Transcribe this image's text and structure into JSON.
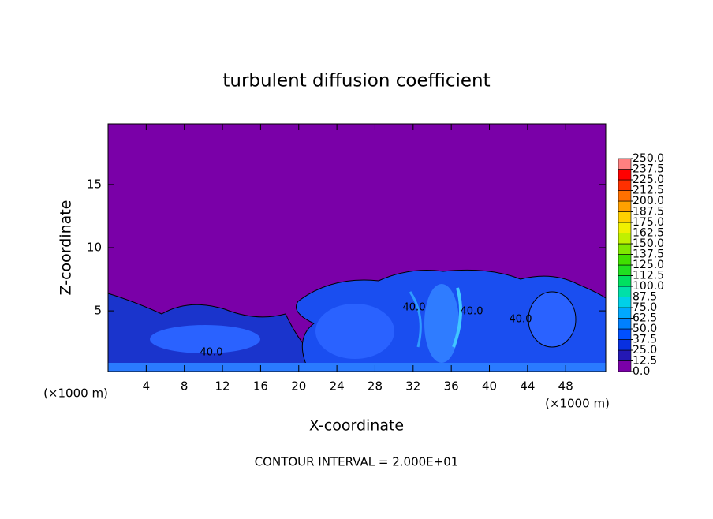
{
  "chart_data": {
    "type": "contour",
    "title": "turbulent diffusion coefficient",
    "x_label": "X-coordinate",
    "y_label": "Z-coordinate",
    "x_unit": "(×1000 m)",
    "footnote": "CONTOUR INTERVAL = 2.000E+01",
    "xlim": [
      0,
      52.2
    ],
    "ylim": [
      0.2,
      19.8
    ],
    "xticks": [
      4,
      8,
      12,
      16,
      20,
      24,
      28,
      32,
      36,
      40,
      44,
      48
    ],
    "yticks": [
      5,
      10,
      15
    ],
    "contour_labels": [
      "40.0",
      "40.0",
      "40.0",
      "40.0"
    ],
    "colorbar": {
      "ticks": [
        {
          "value": 0,
          "label": "0.0"
        },
        {
          "value": 12.5,
          "label": "12.5"
        },
        {
          "value": 25,
          "label": "25.0"
        },
        {
          "value": 37.5,
          "label": "37.5"
        },
        {
          "value": 50,
          "label": "50.0"
        },
        {
          "value": 62.5,
          "label": "62.5"
        },
        {
          "value": 75,
          "label": "75.0"
        },
        {
          "value": 87.5,
          "label": "87.5"
        },
        {
          "value": 100,
          "label": "100.0"
        },
        {
          "value": 112.5,
          "label": "112.5"
        },
        {
          "value": 125,
          "label": "125.0"
        },
        {
          "value": 137.5,
          "label": "137.5"
        },
        {
          "value": 150,
          "label": "150.0"
        },
        {
          "value": 162.5,
          "label": "162.5"
        },
        {
          "value": 175,
          "label": "175.0"
        },
        {
          "value": 187.5,
          "label": "187.5"
        },
        {
          "value": 200,
          "label": "200.0"
        },
        {
          "value": 212.5,
          "label": "212.5"
        },
        {
          "value": 225,
          "label": "225.0"
        },
        {
          "value": 237.5,
          "label": "237.5"
        },
        {
          "value": 250,
          "label": "250.0"
        }
      ],
      "colors": [
        "#7a00a8",
        "#2418b4",
        "#0830e0",
        "#0050ff",
        "#0080ff",
        "#00a8ff",
        "#00d0e8",
        "#00e0a8",
        "#00e060",
        "#20e020",
        "#40e000",
        "#80e800",
        "#c0f000",
        "#f0f000",
        "#ffd000",
        "#ffa000",
        "#ff7000",
        "#ff3000",
        "#ff0000",
        "#ff8080"
      ]
    }
  }
}
